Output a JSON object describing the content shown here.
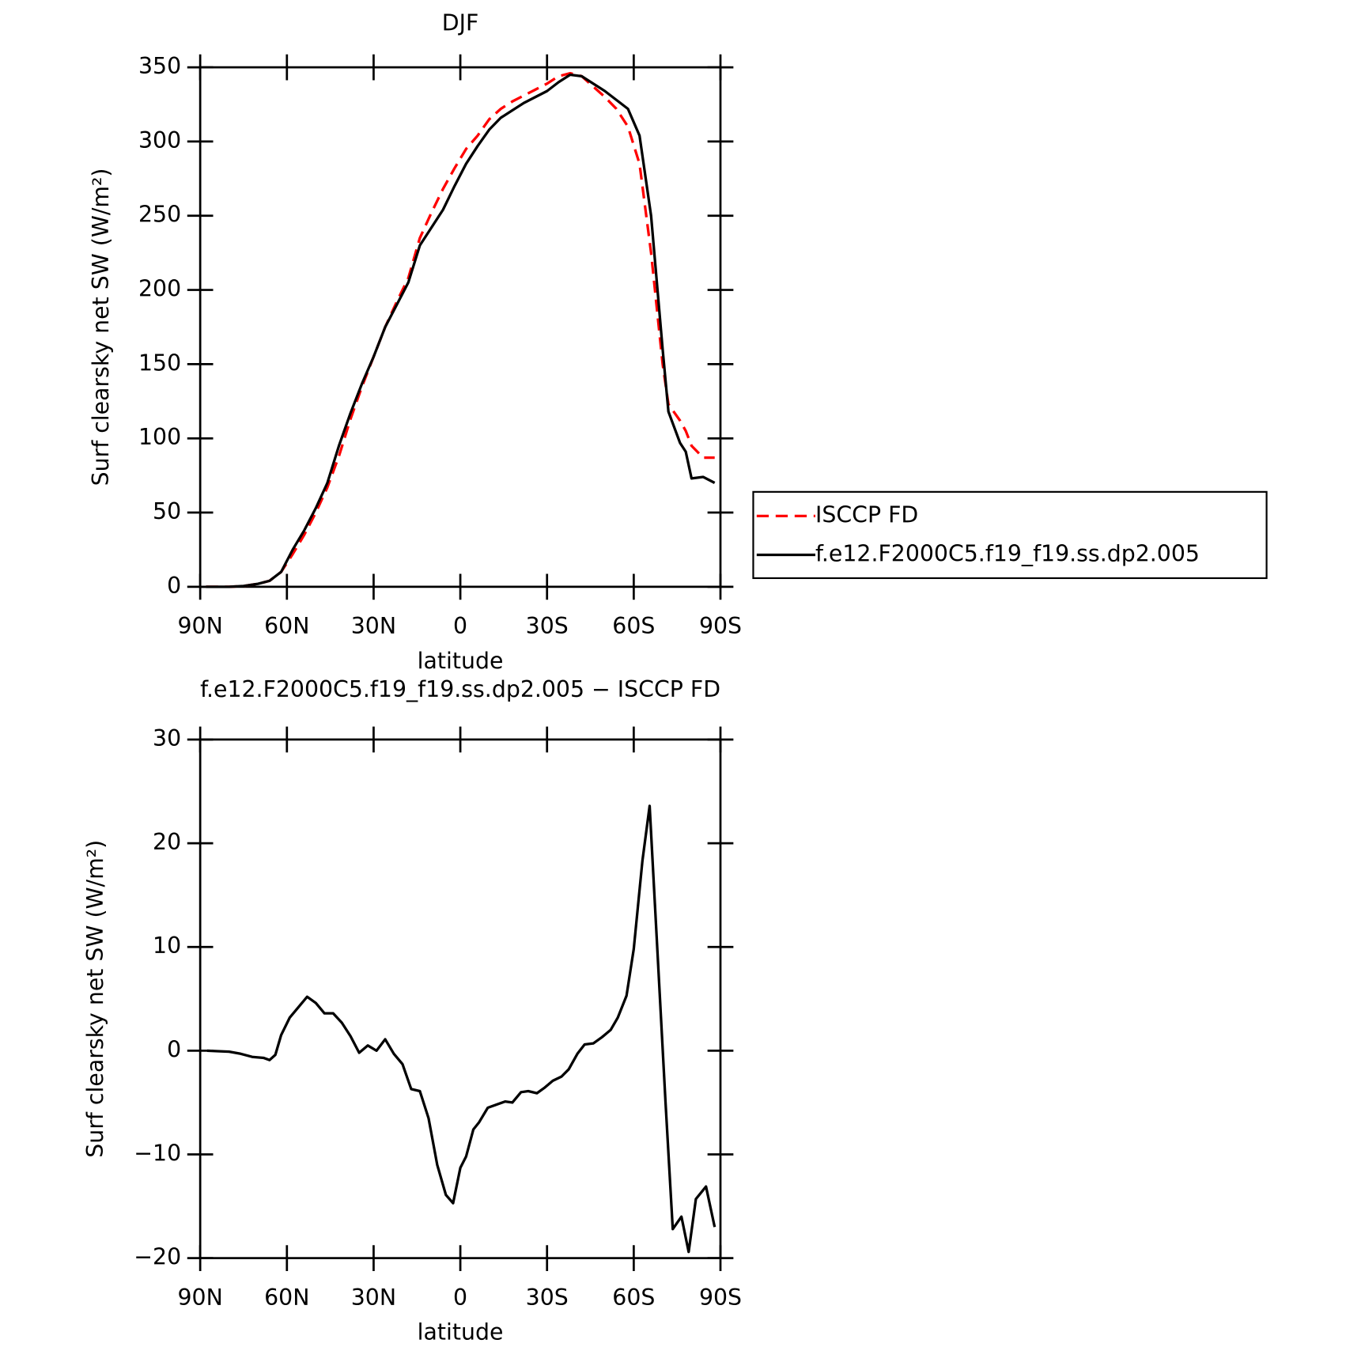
{
  "chart_data": [
    {
      "type": "line",
      "title": "DJF",
      "ylabel": "Surf clearsky net SW (W/m²)",
      "xlabel": "latitude",
      "x": [
        88,
        84,
        80,
        75,
        70,
        66,
        62,
        58,
        54,
        50,
        46,
        42,
        38,
        34,
        30,
        26,
        22,
        18,
        14,
        10,
        6,
        2,
        -2,
        -6,
        -10,
        -14,
        -18,
        -22,
        -26,
        -30,
        -34,
        -38,
        -42,
        -46,
        -50,
        -54,
        -58,
        -62,
        -66,
        -70,
        -72,
        -76,
        -78,
        -80,
        -84,
        -88
      ],
      "series": [
        {
          "name": "ISCCP FD",
          "color": "#ff0000",
          "style": "dashed",
          "values": [
            0,
            0,
            0,
            0.5,
            2,
            4,
            10,
            22,
            35,
            50,
            67,
            88,
            113,
            135,
            155,
            175,
            192,
            208,
            235,
            252,
            268,
            282,
            295,
            304,
            315,
            322,
            327,
            331,
            335,
            339,
            344,
            346,
            344,
            337,
            330,
            322,
            310,
            285,
            225,
            150,
            123,
            112,
            105,
            95,
            87,
            87
          ]
        },
        {
          "name": "f.e12.F2000C5.f19_f19.ss.dp2.005",
          "color": "#000000",
          "style": "solid",
          "values": [
            0,
            0,
            0,
            0.5,
            2,
            4,
            10,
            25,
            38,
            53,
            70,
            95,
            117,
            137,
            155,
            175,
            190,
            205,
            230,
            242,
            254,
            270,
            285,
            297,
            308,
            316,
            321,
            326,
            330,
            334,
            340,
            345,
            344,
            339,
            334,
            328,
            322,
            304,
            250,
            160,
            118,
            97,
            91,
            73,
            74,
            70
          ]
        }
      ],
      "xlim": [
        90,
        -90
      ],
      "xticks": [
        {
          "value": 90,
          "label": "90N"
        },
        {
          "value": 60,
          "label": "60N"
        },
        {
          "value": 30,
          "label": "30N"
        },
        0,
        {
          "value": -30,
          "label": "30S"
        },
        {
          "value": -60,
          "label": "60S"
        },
        {
          "value": -90,
          "label": "90S"
        }
      ],
      "ylim": [
        0,
        350
      ],
      "yticks": [
        0,
        50,
        100,
        150,
        200,
        250,
        300,
        350
      ],
      "grid": false,
      "legend": "right"
    },
    {
      "type": "line",
      "title": "f.e12.F2000C5.f19_f19.ss.dp2.005 − ISCCP FD",
      "ylabel": "Surf clearsky net SW (W/m²)",
      "xlabel": "latitude",
      "x": [
        87.6,
        84,
        80,
        76,
        72,
        68,
        66,
        64,
        62,
        59,
        56,
        53,
        50,
        47,
        44,
        41,
        38,
        35,
        32,
        29,
        26,
        23,
        20,
        17,
        14,
        11,
        8,
        5,
        2.5,
        0,
        -2,
        -4.5,
        -6.5,
        -9.5,
        -12.5,
        -15.5,
        -18,
        -21,
        -23.5,
        -26.5,
        -29,
        -32,
        -35,
        -37.5,
        -40.5,
        -43,
        -46,
        -49,
        -52,
        -54.5,
        -57.5,
        -60,
        -63,
        -65.5,
        -71,
        -73.5,
        -76.5,
        -79,
        -81.5,
        -85,
        -88
      ],
      "values": [
        0,
        -0.05,
        -0.1,
        -0.3,
        -0.6,
        -0.7,
        -0.9,
        -0.4,
        1.5,
        3.2,
        4.2,
        5.2,
        4.6,
        3.6,
        3.6,
        2.7,
        1.4,
        -0.2,
        0.5,
        0,
        1.1,
        -0.3,
        -1.3,
        -3.7,
        -3.9,
        -6.5,
        -11,
        -13.9,
        -14.7,
        -11.3,
        -10.2,
        -7.6,
        -6.9,
        -5.5,
        -5.2,
        -4.9,
        -5,
        -4,
        -3.9,
        -4.1,
        -3.6,
        -2.9,
        -2.5,
        -1.8,
        -0.3,
        0.6,
        0.7,
        1.3,
        2,
        3.2,
        5.3,
        9.8,
        18.3,
        23.6,
        -5,
        -17.2,
        -16,
        -19.4,
        -14.3,
        -13.1,
        -17
      ],
      "color": "#000000",
      "xlim": [
        90,
        -90
      ],
      "xticks": [
        {
          "value": 90,
          "label": "90N"
        },
        {
          "value": 60,
          "label": "60N"
        },
        {
          "value": 30,
          "label": "30N"
        },
        0,
        {
          "value": -30,
          "label": "30S"
        },
        {
          "value": -60,
          "label": "60S"
        },
        {
          "value": -90,
          "label": "90S"
        }
      ],
      "ylim": [
        -20,
        30
      ],
      "yticks": [
        {
          "value": -20,
          "label": "−20"
        },
        {
          "value": -10,
          "label": "−10"
        },
        0,
        10,
        20,
        30
      ],
      "grid": false
    }
  ]
}
